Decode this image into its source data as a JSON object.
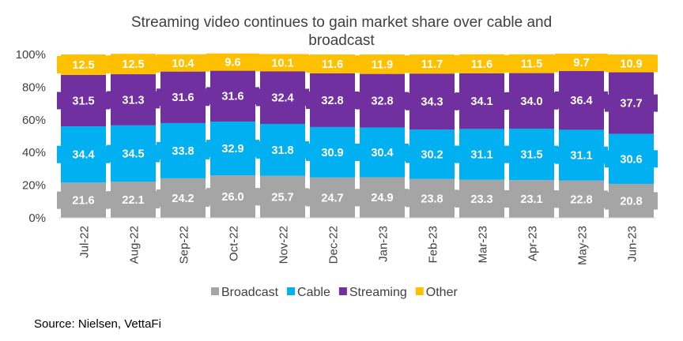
{
  "chart_data": {
    "type": "bar",
    "stacked": true,
    "title": "Streaming video continues to gain market share over cable and broadcast",
    "title_lines": [
      "Streaming video continues to gain market share over cable and",
      "broadcast"
    ],
    "categories": [
      "Jul-22",
      "Aug-22",
      "Sep-22",
      "Oct-22",
      "Nov-22",
      "Dec-22",
      "Jan-23",
      "Feb-23",
      "Mar-23",
      "Apr-23",
      "May-23",
      "Jun-23"
    ],
    "series": [
      {
        "name": "Broadcast",
        "color": "#a5a5a5",
        "values": [
          21.6,
          22.1,
          24.2,
          26.0,
          25.7,
          24.7,
          24.9,
          23.8,
          23.3,
          23.1,
          22.8,
          20.8
        ],
        "labels": [
          "21.6",
          "22.1",
          "24.2",
          "26.0",
          "25.7",
          "24.7",
          "24.9",
          "23.8",
          "23.3",
          "23.1",
          "22.8",
          "20.8"
        ]
      },
      {
        "name": "Cable",
        "color": "#00b0f0",
        "values": [
          34.4,
          34.5,
          33.8,
          32.9,
          31.8,
          30.9,
          30.4,
          30.2,
          31.1,
          31.5,
          31.1,
          30.6
        ],
        "labels": [
          "34.4",
          "34.5",
          "33.8",
          "32.9",
          "31.8",
          "30.9",
          "30.4",
          "30.2",
          "31.1",
          "31.5",
          "31.1",
          "30.6"
        ]
      },
      {
        "name": "Streaming",
        "color": "#7030a0",
        "values": [
          31.5,
          31.3,
          31.6,
          31.6,
          32.4,
          32.8,
          32.8,
          34.3,
          34.1,
          34.0,
          36.4,
          37.7
        ],
        "labels": [
          "31.5",
          "31.3",
          "31.6",
          "31.6",
          "32.4",
          "32.8",
          "32.8",
          "34.3",
          "34.1",
          "34.0",
          "36.4",
          "37.7"
        ]
      },
      {
        "name": "Other",
        "color": "#ffc000",
        "values": [
          12.5,
          12.5,
          10.4,
          9.6,
          10.1,
          11.6,
          11.9,
          11.7,
          11.6,
          11.5,
          9.7,
          10.9
        ],
        "labels": [
          "12.5",
          "12.5",
          "10.4",
          "9.6",
          "10.1",
          "11.6",
          "11.9",
          "11.7",
          "11.6",
          "11.5",
          "9.7",
          "10.9"
        ]
      }
    ],
    "ylim": [
      0,
      100
    ],
    "yticks": [
      0,
      20,
      40,
      60,
      80,
      100
    ],
    "ytick_labels": [
      "0%",
      "20%",
      "40%",
      "60%",
      "80%",
      "100%"
    ],
    "xlabel": "",
    "ylabel": "",
    "legend_position": "bottom",
    "grid": false
  },
  "source_text": "Source: Nielsen, VettaFi"
}
